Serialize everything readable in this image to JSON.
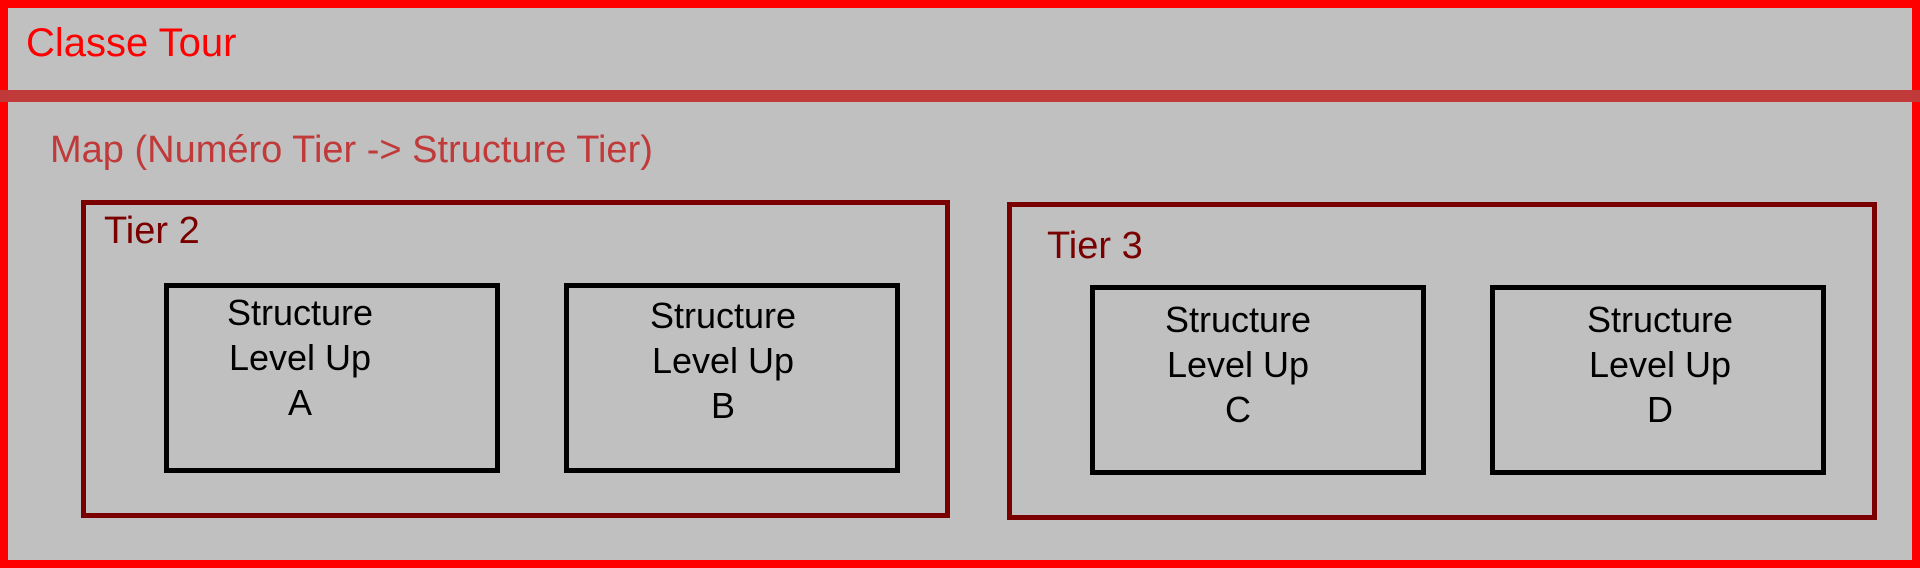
{
  "class": {
    "title": "Classe Tour"
  },
  "map": {
    "label": "Map (Numéro Tier -> Structure Tier)"
  },
  "tiers": [
    {
      "label": "Tier 2",
      "structures": [
        {
          "line1": "Structure",
          "line2": "Level Up",
          "line3": "A"
        },
        {
          "line1": "Structure",
          "line2": "Level Up",
          "line3": "B"
        }
      ]
    },
    {
      "label": "Tier 3",
      "structures": [
        {
          "line1": "Structure",
          "line2": "Level Up",
          "line3": "C"
        },
        {
          "line1": "Structure",
          "line2": "Level Up",
          "line3": "D"
        }
      ]
    }
  ],
  "colors": {
    "class_border": "#ff0000",
    "map_color": "#c03a3a",
    "tier_border": "#7a0000",
    "structure_border": "#000000",
    "background": "#c0c0c0"
  }
}
